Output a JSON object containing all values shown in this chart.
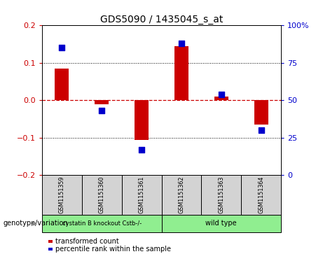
{
  "title": "GDS5090 / 1435045_s_at",
  "samples": [
    "GSM1151359",
    "GSM1151360",
    "GSM1151361",
    "GSM1151362",
    "GSM1151363",
    "GSM1151364"
  ],
  "red_values": [
    0.085,
    -0.01,
    -0.105,
    0.145,
    0.01,
    -0.065
  ],
  "blue_pct": [
    85,
    43,
    17,
    88,
    54,
    30
  ],
  "ylim_left": [
    -0.2,
    0.2
  ],
  "ylim_right": [
    0,
    100
  ],
  "yticks_left": [
    -0.2,
    -0.1,
    0.0,
    0.1,
    0.2
  ],
  "yticks_right": [
    0,
    25,
    50,
    75,
    100
  ],
  "red_color": "#cc0000",
  "blue_color": "#0000cc",
  "group1_label": "cystatin B knockout Cstb-/-",
  "group2_label": "wild type",
  "group1_count": 3,
  "group2_count": 3,
  "group_color": "#90ee90",
  "sample_bg": "#d3d3d3",
  "row_label": "genotype/variation",
  "legend_red": "transformed count",
  "legend_blue": "percentile rank within the sample",
  "bar_width": 0.35
}
